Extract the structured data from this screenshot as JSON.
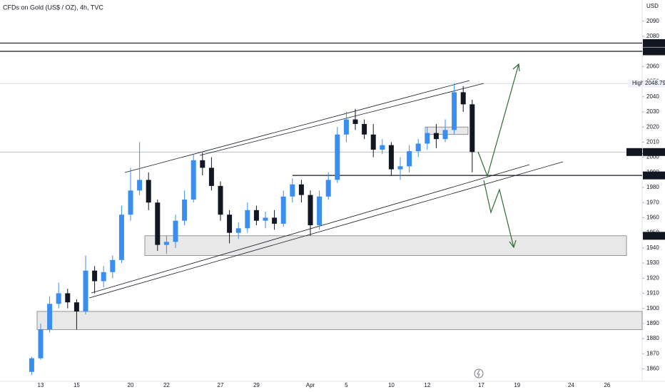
{
  "chart_data": {
    "type": "candlestick",
    "title": "CFDs on Gold (US$ / OZ), 4h, TVC",
    "y_axis_label": "USD",
    "categories": [
      null,
      "13",
      null,
      null,
      null,
      "15",
      null,
      null,
      null,
      null,
      null,
      "20",
      null,
      null,
      null,
      "22",
      null,
      null,
      null,
      null,
      null,
      "27",
      null,
      null,
      null,
      "29",
      null,
      null,
      null,
      null,
      null,
      "Apr",
      null,
      null,
      null,
      "5",
      null,
      null,
      null,
      null,
      "10",
      null,
      null,
      null,
      "12",
      null,
      null,
      null,
      null,
      null,
      "17",
      null,
      null,
      null,
      "19",
      null,
      null,
      null,
      null,
      null,
      "24",
      null,
      null,
      null,
      "26",
      null
    ],
    "open": [
      1858,
      1867,
      1886,
      1903,
      1910,
      1904,
      1898,
      1925,
      1918,
      1924,
      1932,
      1962,
      1978,
      1985,
      1970,
      1942,
      1944,
      1958,
      1972,
      1998,
      1993,
      1981,
      1962,
      1950,
      1953,
      1965,
      1958,
      1960,
      1956,
      1974,
      1982,
      1975,
      1955,
      1974,
      1985,
      2015,
      2025,
      2022,
      2015,
      2005,
      2008,
      1992,
      1994,
      2004,
      2009,
      2016,
      2012,
      2018,
      2043,
      2035,
      null,
      null,
      null,
      null,
      null,
      null,
      null,
      null,
      null,
      null,
      null,
      null,
      null,
      null,
      null,
      null
    ],
    "high": [
      1868,
      1890,
      1908,
      1917,
      1913,
      1906,
      1935,
      1928,
      1928,
      1935,
      1968,
      1993,
      2010,
      1990,
      1972,
      1948,
      1962,
      1978,
      2002,
      2003,
      2000,
      1984,
      1965,
      1957,
      1970,
      1968,
      1964,
      1965,
      1978,
      1986,
      1985,
      1978,
      1978,
      1990,
      2020,
      2030,
      2032,
      2025,
      2022,
      2012,
      2010,
      2000,
      2008,
      2012,
      2020,
      2022,
      2025,
      2048.79,
      2047,
      2038,
      null,
      null,
      null,
      null,
      null,
      null,
      null,
      null,
      null,
      null,
      null,
      null,
      null,
      null,
      null,
      null
    ],
    "low": [
      1856,
      1866,
      1884,
      1900,
      1900,
      1886,
      1896,
      1910,
      1914,
      1920,
      1930,
      1958,
      1975,
      1965,
      1938,
      1936,
      1940,
      1955,
      1970,
      1988,
      1978,
      1958,
      1943,
      1946,
      1950,
      1955,
      1953,
      1952,
      1954,
      1970,
      1970,
      1948,
      1952,
      1972,
      1983,
      2010,
      2018,
      2012,
      2000,
      2002,
      1988,
      1985,
      1990,
      2000,
      2005,
      2006,
      2010,
      2015,
      2030,
      1990,
      null,
      null,
      null,
      null,
      null,
      null,
      null,
      null,
      null,
      null,
      null,
      null,
      null,
      null,
      null,
      null
    ],
    "close": [
      1867,
      1886,
      1903,
      1910,
      1904,
      1898,
      1925,
      1918,
      1924,
      1932,
      1962,
      1978,
      1985,
      1970,
      1942,
      1944,
      1958,
      1972,
      1998,
      1993,
      1981,
      1962,
      1950,
      1953,
      1965,
      1958,
      1960,
      1956,
      1974,
      1982,
      1975,
      1955,
      1974,
      1985,
      2015,
      2025,
      2022,
      2015,
      2005,
      2008,
      1992,
      1994,
      2004,
      2009,
      2016,
      2012,
      2018,
      2043,
      2035,
      2003.43,
      null,
      null,
      null,
      null,
      null,
      null,
      null,
      null,
      null,
      null,
      null,
      null,
      null,
      null,
      null,
      null
    ],
    "up_color": "#3a8ef0",
    "down_color": "#131722",
    "ylim": [
      1852,
      2104
    ],
    "yticks": [
      1860,
      1870,
      1880,
      1890,
      1900,
      1910,
      1920,
      1930,
      1940,
      1950,
      1960,
      1970,
      1980,
      1990,
      2000,
      2010,
      2020,
      2030,
      2040,
      2050,
      2060,
      2070,
      2080,
      2090
    ],
    "grid": false,
    "levels": [
      {
        "value": 2075.5,
        "label": "2075.50"
      },
      {
        "value": 2070.06,
        "label": "2070.06"
      },
      {
        "value": 1987.95,
        "label": "1987.95"
      }
    ],
    "high_tag": "High",
    "symbol_tag": "GOLD",
    "zones": [
      {
        "low": 1935,
        "high": 1948.02
      },
      {
        "low": 1886,
        "high": 1898
      },
      {
        "low": 2015,
        "high": 2020
      }
    ]
  }
}
